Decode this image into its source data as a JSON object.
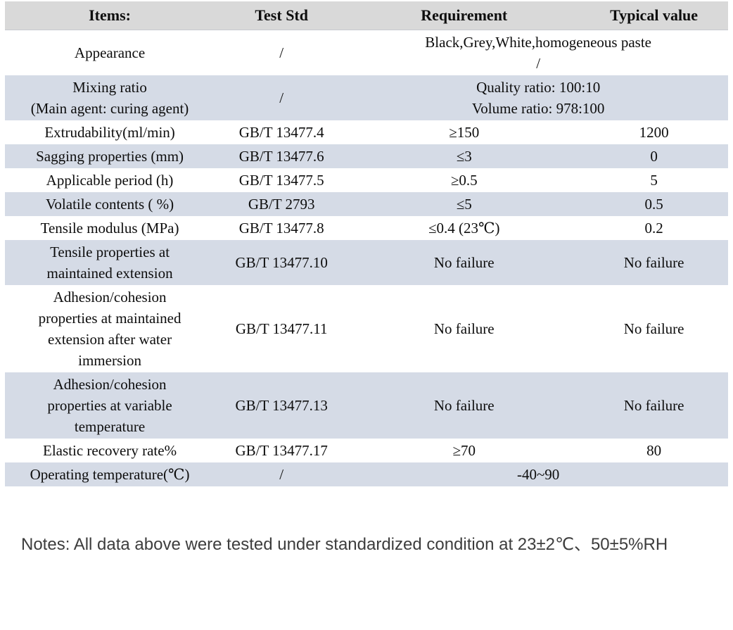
{
  "page": {
    "background": "#ffffff",
    "header_bg": "#d9d9d9",
    "stripe_bg": "#d5dbe6",
    "notes_color": "#3d3d3d"
  },
  "table": {
    "columns": [
      "Items:",
      "Test Std",
      "Requirement",
      "Typical value"
    ],
    "rows": [
      {
        "item": "Appearance",
        "test_std": "/",
        "requirement": "Black,Grey,White,homogeneous paste\n/",
        "typical": "",
        "span": true
      },
      {
        "item": "Mixing ratio\n(Main agent: curing agent)",
        "test_std": "/",
        "requirement": "Quality ratio: 100:10\nVolume ratio: 978:100",
        "typical": "",
        "span": true
      },
      {
        "item": "Extrudability(ml/min)",
        "test_std": "GB/T 13477.4",
        "requirement": "≥150",
        "typical": "1200",
        "span": false
      },
      {
        "item": "Sagging properties (mm)",
        "test_std": "GB/T 13477.6",
        "requirement": "≤3",
        "typical": "0",
        "span": false
      },
      {
        "item": "Applicable period (h)",
        "test_std": "GB/T 13477.5",
        "requirement": "≥0.5",
        "typical": "5",
        "span": false
      },
      {
        "item": "Volatile contents ( %)",
        "test_std": "GB/T 2793",
        "requirement": "≤5",
        "typical": "0.5",
        "span": false
      },
      {
        "item": "Tensile modulus (MPa)",
        "test_std": "GB/T 13477.8",
        "requirement": "≤0.4 (23℃)",
        "typical": "0.2",
        "span": false
      },
      {
        "item": "Tensile properties at\nmaintained extension",
        "test_std": "GB/T 13477.10",
        "requirement": "No failure",
        "typical": "No failure",
        "span": false
      },
      {
        "item": "Adhesion/cohesion\nproperties at maintained\nextension after water\nimmersion",
        "test_std": "GB/T 13477.11",
        "requirement": "No failure",
        "typical": "No failure",
        "span": false
      },
      {
        "item": "Adhesion/cohesion\nproperties at variable\ntemperature",
        "test_std": "GB/T 13477.13",
        "requirement": "No failure",
        "typical": "No failure",
        "span": false
      },
      {
        "item": "Elastic recovery rate%",
        "test_std": "GB/T 13477.17",
        "requirement": "≥70",
        "typical": "80",
        "span": false
      },
      {
        "item": "Operating temperature(℃)",
        "test_std": "/",
        "requirement": "-40~90",
        "typical": "",
        "span": true
      }
    ]
  },
  "notes": "Notes: All data above were tested under standardized condition at 23±2℃、50±5%RH"
}
